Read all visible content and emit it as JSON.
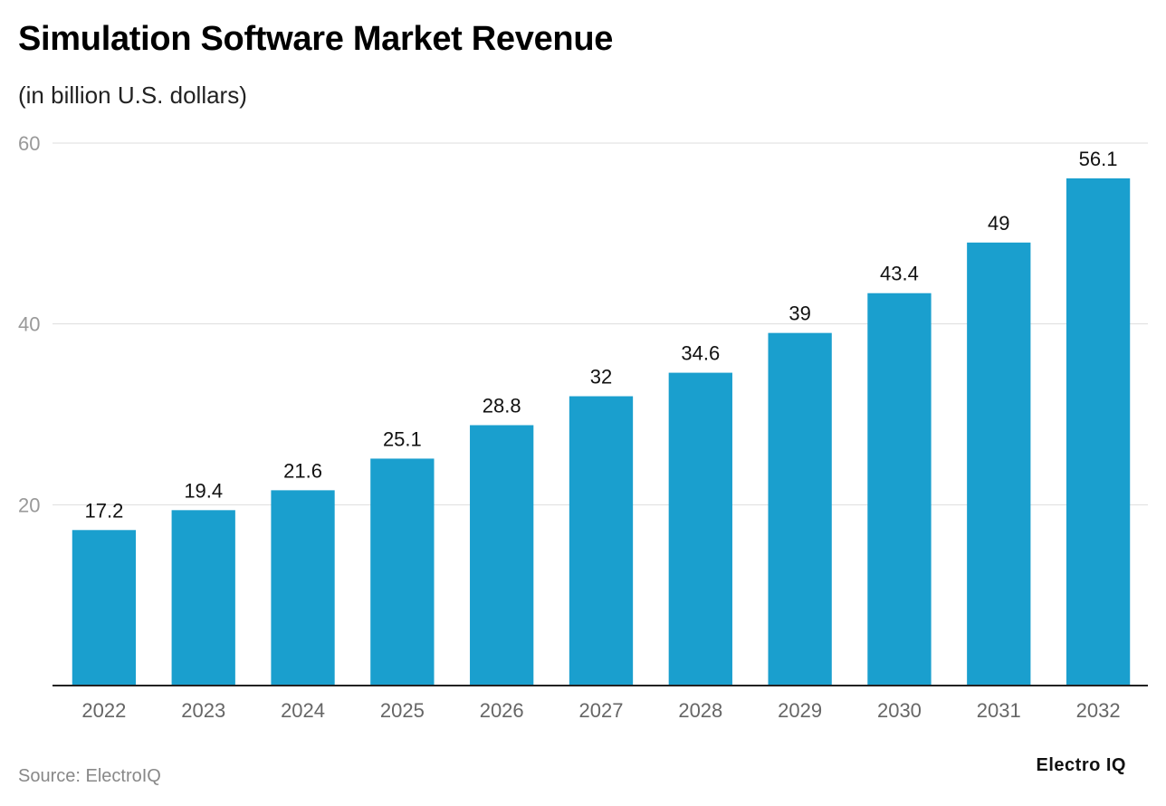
{
  "chart_data": {
    "type": "bar",
    "title": "Simulation Software Market Revenue",
    "subtitle": "(in billion U.S. dollars)",
    "categories": [
      "2022",
      "2023",
      "2024",
      "2025",
      "2026",
      "2027",
      "2028",
      "2029",
      "2030",
      "2031",
      "2032"
    ],
    "values": [
      17.2,
      19.4,
      21.6,
      25.1,
      28.8,
      32,
      34.6,
      39,
      43.4,
      49,
      56.1
    ],
    "value_labels": [
      "17.2",
      "19.4",
      "21.6",
      "25.1",
      "28.8",
      "32",
      "34.6",
      "39",
      "43.4",
      "49",
      "56.1"
    ],
    "ylim": [
      0,
      60
    ],
    "yticks": [
      20,
      40,
      60
    ],
    "xlabel": "",
    "ylabel": "",
    "grid": true,
    "bar_color": "#1a9fce"
  },
  "footer": {
    "source": "Source: ElectroIQ",
    "brand": "Electro IQ"
  }
}
